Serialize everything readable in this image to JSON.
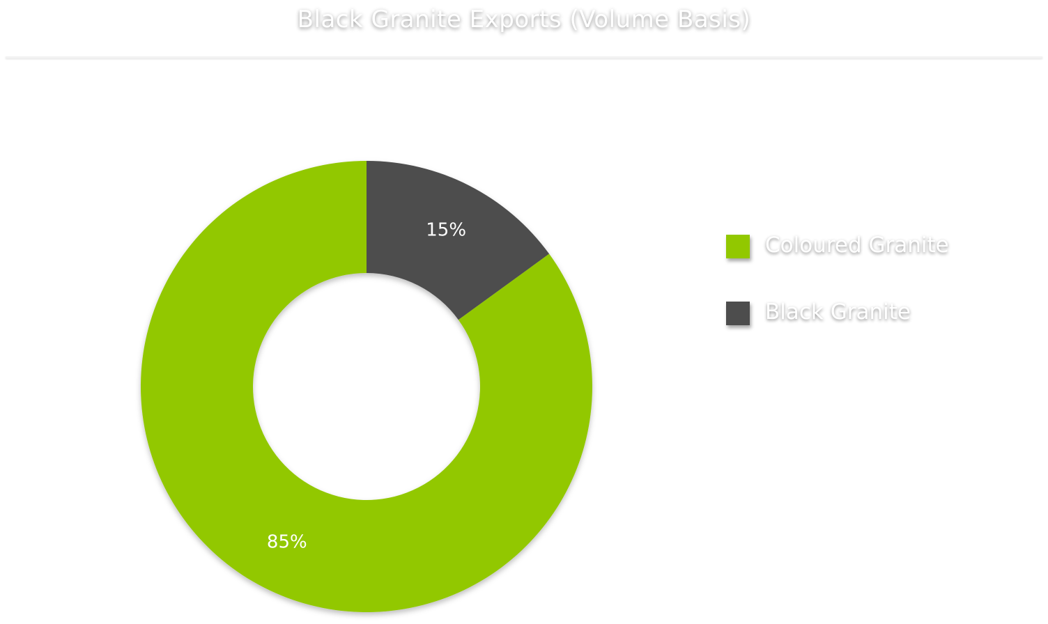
{
  "chart_data": {
    "type": "pie",
    "subtype": "donut",
    "title": "Black Granite Exports (Volume Basis)",
    "categories": [
      "Coloured Granite",
      "Black Granite"
    ],
    "values": [
      85,
      15
    ],
    "unit": "%",
    "data_labels": [
      "85%",
      "15%"
    ],
    "colors": [
      "#92c800",
      "#4d4d4d"
    ],
    "legend_position": "right",
    "start_angle_deg": 0,
    "direction": "counterclockwise-from-top"
  },
  "legend": {
    "items": [
      {
        "label": "Coloured Granite",
        "color": "#92c800"
      },
      {
        "label": "Black Granite",
        "color": "#4d4d4d"
      }
    ]
  }
}
